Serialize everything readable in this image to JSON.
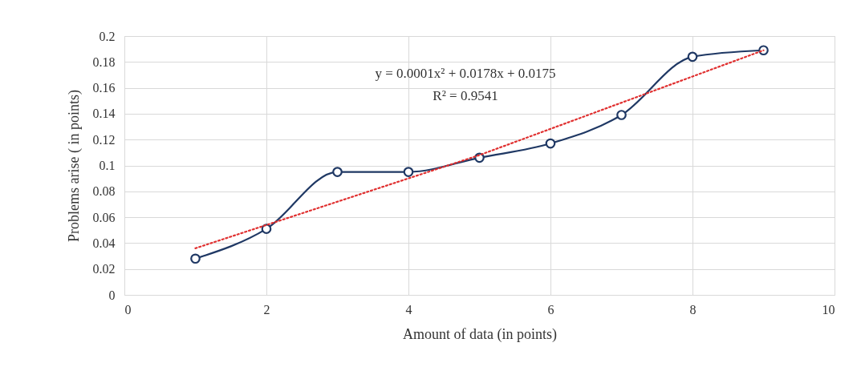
{
  "chart_data": {
    "type": "line",
    "xlabel": "Amount of data (in points)",
    "ylabel": "Problems arise ( in points)",
    "x": [
      1,
      2,
      3,
      4,
      5,
      6,
      7,
      8,
      9
    ],
    "series": [
      {
        "color": "#1f3864",
        "values": [
          0.028,
          0.051,
          0.095,
          0.095,
          0.106,
          0.117,
          0.139,
          0.184,
          0.189
        ],
        "marker": "circle"
      },
      {
        "type": "line",
        "color": "#e03030",
        "line_style": "dotted",
        "marker": "none",
        "x": [
          1,
          5,
          9
        ],
        "values": [
          0.036,
          0.108,
          0.189
        ]
      }
    ],
    "annotations": [
      "y = 0.0001x² + 0.0178x + 0.0175",
      "R² = 0.9541"
    ],
    "xlim": [
      0,
      10
    ],
    "xticks": [
      0,
      2,
      4,
      6,
      8,
      10
    ],
    "ylim": [
      0,
      0.2
    ],
    "yticks": [
      0,
      0.02,
      0.04,
      0.06,
      0.08,
      0.1,
      0.12,
      0.14,
      0.16,
      0.18,
      0.2
    ],
    "grid": true
  }
}
